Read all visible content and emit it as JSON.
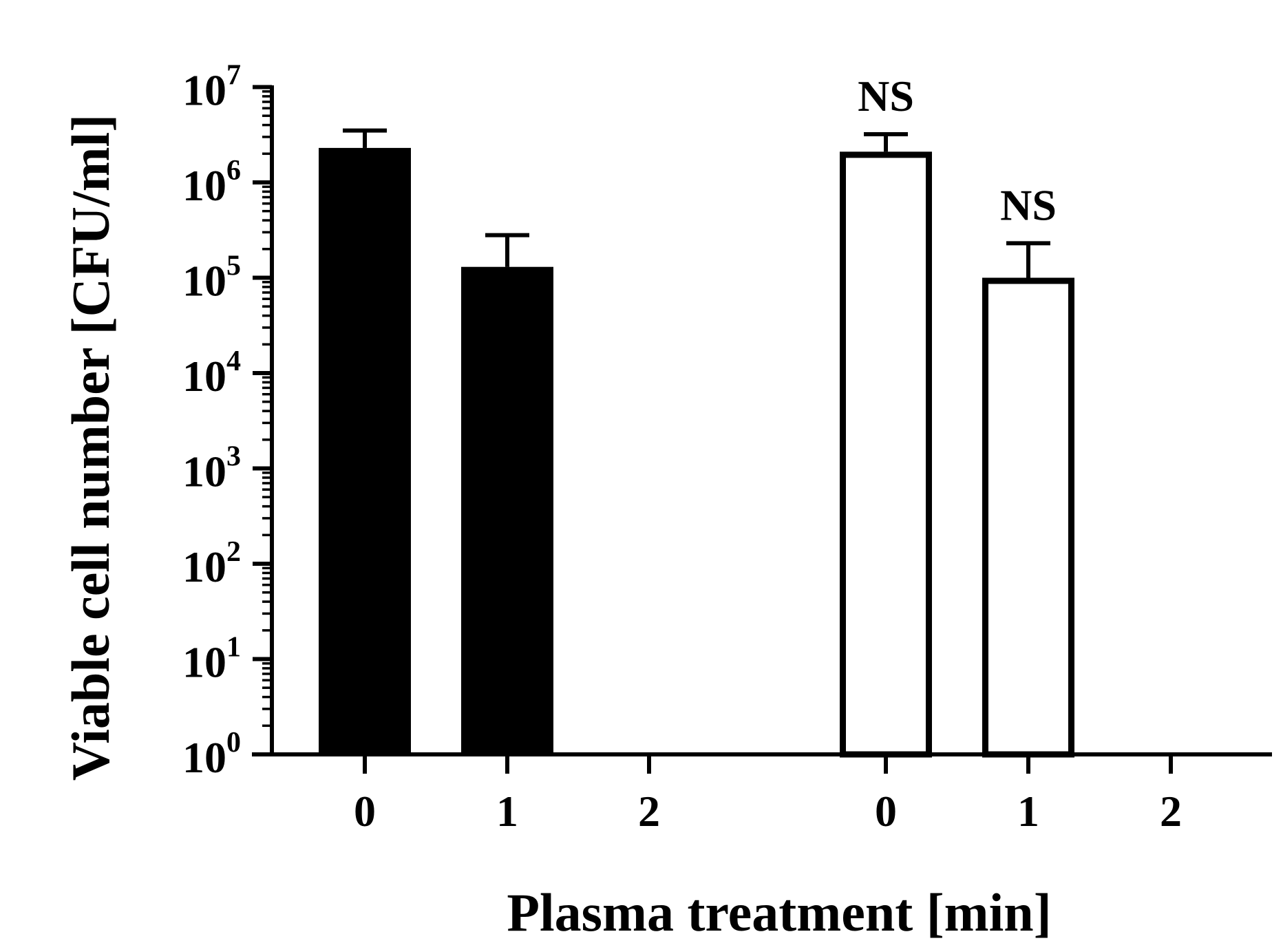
{
  "chart_data": {
    "type": "bar",
    "title": "",
    "xlabel": "Plasma treatment [min]",
    "ylabel": "Viable cell number [CFU/ml]",
    "y_scale": "log10",
    "ylim": [
      1,
      10000000
    ],
    "y_ticks": [
      {
        "base": "10",
        "exp": "0",
        "value": 1
      },
      {
        "base": "10",
        "exp": "1",
        "value": 10
      },
      {
        "base": "10",
        "exp": "2",
        "value": 100
      },
      {
        "base": "10",
        "exp": "3",
        "value": 1000
      },
      {
        "base": "10",
        "exp": "4",
        "value": 10000
      },
      {
        "base": "10",
        "exp": "5",
        "value": 100000
      },
      {
        "base": "10",
        "exp": "6",
        "value": 1000000
      },
      {
        "base": "10",
        "exp": "7",
        "value": 10000000
      }
    ],
    "groups": [
      {
        "fill": "#000000",
        "categories": [
          "0",
          "1",
          "2"
        ],
        "values": [
          2300000,
          130000,
          1
        ],
        "error_upper": [
          3500000,
          280000,
          null
        ],
        "annotations": [
          "",
          "",
          ""
        ]
      },
      {
        "fill": "#ffffff",
        "categories": [
          "0",
          "1",
          "2"
        ],
        "values": [
          2100000,
          100000,
          1
        ],
        "error_upper": [
          3200000,
          230000,
          null
        ],
        "annotations": [
          "NS",
          "NS",
          ""
        ]
      }
    ],
    "grid": false,
    "legend": "none"
  },
  "colors": {
    "axis": "#000000",
    "filled_bar": "#000000",
    "open_bar": "#ffffff"
  }
}
